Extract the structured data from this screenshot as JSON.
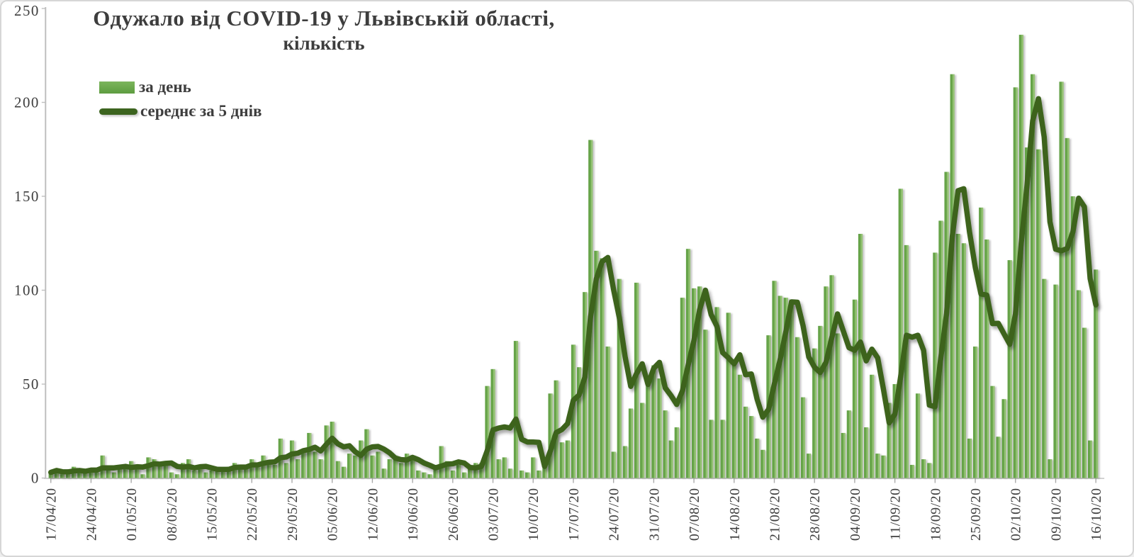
{
  "title": {
    "line1": "Одужало від COVID-19 у Львівській області,",
    "line2": "кількість"
  },
  "legend": {
    "items": [
      {
        "label": "за день",
        "swatch": "bar-swatch"
      },
      {
        "label": "середнє за 5 днів",
        "swatch": "line-swatch"
      }
    ]
  },
  "colors": {
    "bar_main": "#6aa84c",
    "bar_light": "#9cc67c",
    "bar_dark": "#5e9c41",
    "avg_line": "#3c641f",
    "text": "#3d3d3d",
    "axis": "#bfbfbf"
  },
  "y_axis": {
    "ticks": [
      0,
      50,
      100,
      150,
      200,
      250
    ],
    "max": 250
  },
  "x_axis": {
    "tick_interval_days": 7,
    "tick_labels": [
      "17/04/20",
      "24/04/20",
      "01/05/20",
      "08/05/20",
      "15/05/20",
      "22/05/20",
      "29/05/20",
      "05/06/20",
      "12/06/20",
      "19/06/20",
      "26/06/20",
      "03/07/20",
      "10/07/20",
      "17/07/20",
      "24/07/20",
      "31/07/20",
      "07/08/20",
      "14/08/20",
      "21/08/20",
      "28/08/20",
      "04/09/20",
      "11/09/20",
      "18/09/20",
      "25/09/20",
      "02/10/20",
      "09/10/20",
      "16/10/20"
    ]
  },
  "chart_data": {
    "type": "bar",
    "title": "Одужало від COVID-19 у Львівській області, кількість",
    "x_start": "17/04/20",
    "x_end": "16/10/20",
    "x_step_days": 1,
    "ylim": [
      0,
      250
    ],
    "grid": false,
    "legend_position": "top-left",
    "series": [
      {
        "name": "за день",
        "type": "bar",
        "values": [
          3,
          5,
          2,
          3,
          6,
          4,
          3,
          5,
          3,
          12,
          4,
          3,
          7,
          5,
          9,
          6,
          2,
          11,
          10,
          8,
          8,
          3,
          2,
          8,
          10,
          4,
          6,
          3,
          4,
          6,
          4,
          6,
          8,
          5,
          6,
          10,
          6,
          12,
          8,
          7,
          21,
          8,
          20,
          10,
          14,
          24,
          14,
          10,
          28,
          30,
          9,
          6,
          13,
          12,
          20,
          26,
          12,
          14,
          5,
          10,
          12,
          8,
          13,
          12,
          4,
          3,
          2,
          6,
          17,
          9,
          4,
          7,
          3,
          5,
          8,
          8,
          49,
          58,
          10,
          11,
          5,
          73,
          4,
          3,
          11,
          4,
          9,
          45,
          52,
          19,
          20,
          71,
          59,
          99,
          180,
          121,
          117,
          70,
          14,
          106,
          17,
          37,
          104,
          40,
          51,
          60,
          53,
          36,
          20,
          27,
          96,
          122,
          101,
          102,
          79,
          31,
          91,
          31,
          88,
          63,
          55,
          38,
          33,
          21,
          15,
          76,
          105,
          97,
          96,
          95,
          75,
          43,
          13,
          69,
          81,
          102,
          108,
          77,
          24,
          36,
          95,
          130,
          27,
          55,
          13,
          12,
          40,
          50,
          154,
          124,
          7,
          45,
          10,
          8,
          120,
          137,
          163,
          215,
          130,
          125,
          21,
          70,
          144,
          127,
          49,
          22,
          42,
          116,
          208,
          236,
          176,
          215,
          175,
          106,
          10,
          103,
          211,
          181,
          150,
          100,
          80,
          20,
          111
        ]
      },
      {
        "name": "середнє за 5 днів",
        "type": "line",
        "derived": "trailing mean of 'за день' over 5-day window"
      }
    ]
  }
}
